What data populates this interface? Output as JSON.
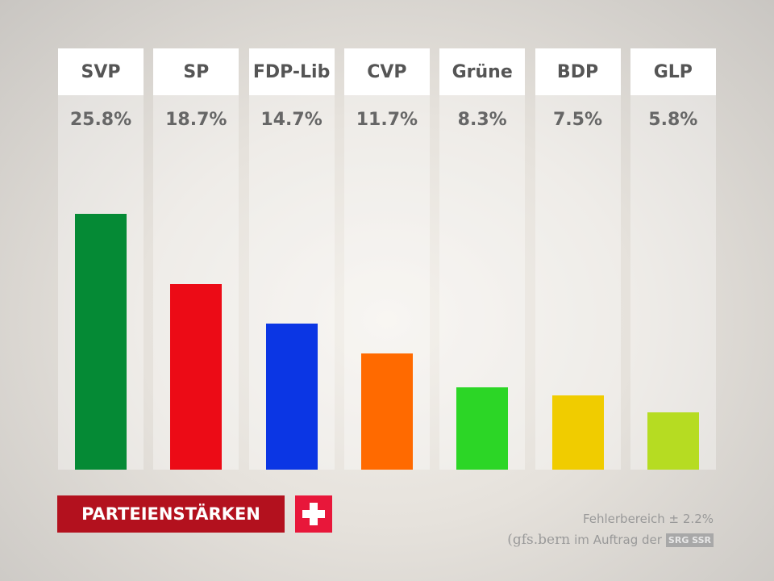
{
  "chart_data": {
    "type": "bar",
    "categories": [
      "SVP",
      "SP",
      "FDP-Lib",
      "CVP",
      "Grüne",
      "BDP",
      "GLP"
    ],
    "values": [
      25.8,
      18.7,
      14.7,
      11.7,
      8.3,
      7.5,
      5.8
    ],
    "labels": [
      "25.8%",
      "18.7%",
      "14.7%",
      "11.7%",
      "8.3%",
      "7.5%",
      "5.8%"
    ],
    "colors": [
      "#058a35",
      "#ec0b16",
      "#0b36e4",
      "#ff6a00",
      "#2cd626",
      "#f0cc00",
      "#b6dc22"
    ],
    "title": "PARTEIENSTÄRKEN",
    "xlabel": "",
    "ylabel": "",
    "grid": false
  },
  "footer": {
    "error_margin": "Fehlerbereich ± 2.2%",
    "source_logo": "(gfs.bern",
    "source_text": "im Auftrag der",
    "sponsor_logo": "SRG SSR"
  },
  "flag_icon": "swiss-cross-icon"
}
